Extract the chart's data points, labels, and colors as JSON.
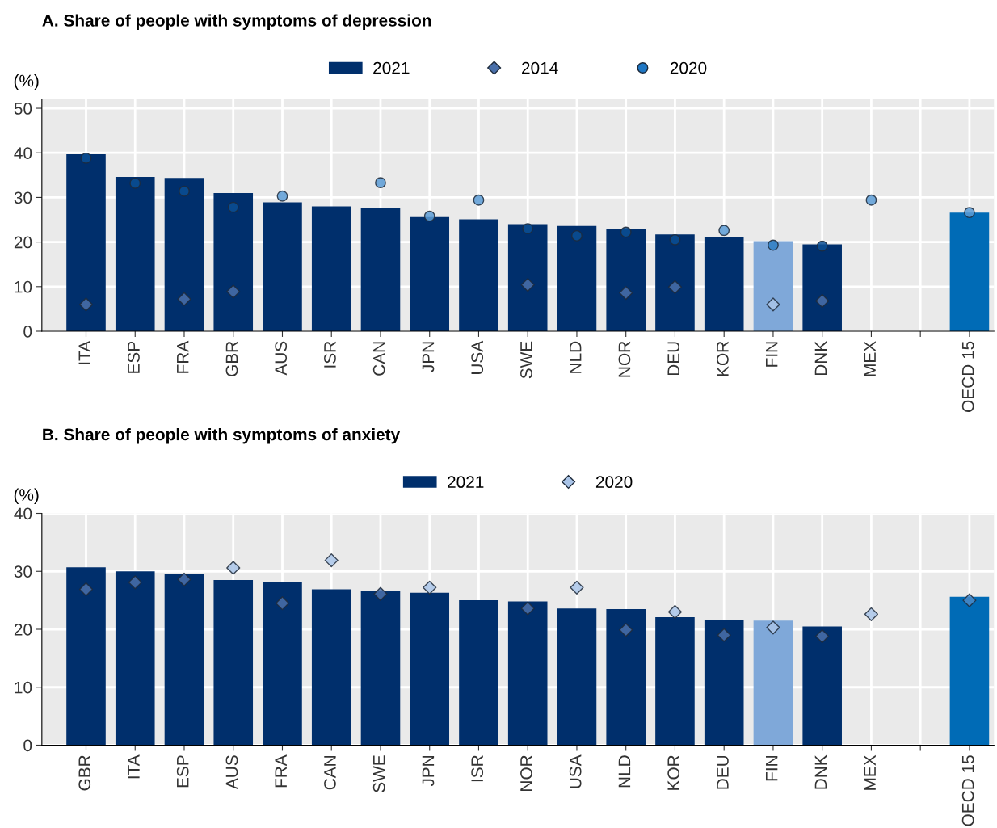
{
  "chart_data": [
    {
      "type": "bar",
      "title": "A. Share of people with symptoms of depression",
      "ylabel": "(%)",
      "categories": [
        "ITA",
        "ESP",
        "FRA",
        "GBR",
        "AUS",
        "ISR",
        "CAN",
        "JPN",
        "USA",
        "SWE",
        "NLD",
        "NOR",
        "DEU",
        "KOR",
        "FIN",
        "DNK",
        "MEX",
        null,
        "OECD 15"
      ],
      "series": [
        {
          "name": "2021",
          "color": "#002f6c",
          "colors": [
            "#002f6c",
            "#002f6c",
            "#002f6c",
            "#002f6c",
            "#002f6c",
            "#002f6c",
            "#002f6c",
            "#002f6c",
            "#002f6c",
            "#002f6c",
            "#002f6c",
            "#002f6c",
            "#002f6c",
            "#002f6c",
            "#7fa8d9",
            "#002f6c",
            "#002f6c",
            "#002f6c",
            "#006bb6"
          ],
          "values": [
            39.7,
            34.6,
            34.4,
            31.0,
            28.9,
            28.0,
            27.7,
            25.6,
            25.1,
            24.0,
            23.6,
            22.9,
            21.7,
            21.1,
            20.2,
            19.5,
            null,
            null,
            26.6
          ]
        },
        {
          "name": "2014",
          "type": "scatter",
          "marker": "diamond",
          "color": "#4a70aa",
          "colors": [
            "#4a70aa",
            "#4a70aa",
            "#4a70aa",
            "#4a70aa",
            "#4a70aa",
            "#4a70aa",
            "#4a70aa",
            "#4a70aa",
            "#4a70aa",
            "#4a70aa",
            "#4a70aa",
            "#4a70aa",
            "#4a70aa",
            "#4a70aa",
            "#a9c4e8",
            "#4a70aa",
            "#4a70aa",
            "#4a70aa",
            "#4a70aa"
          ],
          "values": [
            6.0,
            null,
            7.2,
            8.9,
            null,
            null,
            null,
            null,
            null,
            10.4,
            null,
            8.6,
            9.9,
            null,
            6.0,
            6.8,
            null,
            null,
            null
          ]
        },
        {
          "name": "2020",
          "type": "scatter",
          "marker": "circle",
          "color": "#1f77c4",
          "colors": [
            "#0a4f94",
            "#0a4f94",
            "#0a4f94",
            "#0a4f94",
            "#5b9bd5",
            "#5b9bd5",
            "#5b9bd5",
            "#5b9bd5",
            "#5b9bd5",
            "#0a4f94",
            "#0a4f94",
            "#0a4f94",
            "#0a4f94",
            "#5b9bd5",
            "#2f7fc4",
            "#0a4f94",
            "#5b9bd5",
            "#5b9bd5",
            "#5b9bd5"
          ],
          "values": [
            38.8,
            33.2,
            31.4,
            27.8,
            30.3,
            null,
            33.3,
            25.8,
            29.4,
            23.0,
            21.4,
            22.2,
            20.5,
            22.6,
            19.3,
            19.1,
            29.4,
            null,
            26.6
          ]
        }
      ],
      "ylim": [
        0,
        52
      ],
      "yticks": [
        0,
        10,
        20,
        30,
        40,
        50
      ],
      "grid": true,
      "legend": "top"
    },
    {
      "type": "bar",
      "title": "B. Share of people with symptoms of anxiety",
      "ylabel": "(%)",
      "categories": [
        "GBR",
        "ITA",
        "ESP",
        "AUS",
        "FRA",
        "CAN",
        "SWE",
        "JPN",
        "ISR",
        "NOR",
        "USA",
        "NLD",
        "KOR",
        "DEU",
        "FIN",
        "DNK",
        "MEX",
        null,
        "OECD 15"
      ],
      "series": [
        {
          "name": "2021",
          "color": "#002f6c",
          "colors": [
            "#002f6c",
            "#002f6c",
            "#002f6c",
            "#002f6c",
            "#002f6c",
            "#002f6c",
            "#002f6c",
            "#002f6c",
            "#002f6c",
            "#002f6c",
            "#002f6c",
            "#002f6c",
            "#002f6c",
            "#002f6c",
            "#7fa8d9",
            "#002f6c",
            "#002f6c",
            "#002f6c",
            "#006bb6"
          ],
          "values": [
            30.7,
            30.0,
            29.6,
            28.5,
            28.1,
            26.9,
            26.6,
            26.3,
            25.0,
            24.8,
            23.6,
            23.5,
            22.1,
            21.6,
            21.5,
            20.5,
            null,
            null,
            25.6
          ]
        },
        {
          "name": "2020",
          "type": "scatter",
          "marker": "diamond",
          "color": "#a9c4e8",
          "colors": [
            "#4a70aa",
            "#4a70aa",
            "#4a70aa",
            "#a9c4e8",
            "#4a70aa",
            "#a9c4e8",
            "#4a70aa",
            "#a9c4e8",
            "#a9c4e8",
            "#4a70aa",
            "#a9c4e8",
            "#4a70aa",
            "#a9c4e8",
            "#4a70aa",
            "#a9c4e8",
            "#4a70aa",
            "#a9c4e8",
            "#a9c4e8",
            "#4a8ac8"
          ],
          "values": [
            26.9,
            28.1,
            28.6,
            30.6,
            24.5,
            31.9,
            26.1,
            27.2,
            null,
            23.6,
            27.2,
            19.9,
            23.0,
            19.0,
            20.3,
            18.8,
            22.6,
            null,
            25.0
          ]
        }
      ],
      "ylim": [
        0,
        40
      ],
      "yticks": [
        0,
        10,
        20,
        30,
        40
      ],
      "grid": true,
      "legend": "top"
    }
  ]
}
